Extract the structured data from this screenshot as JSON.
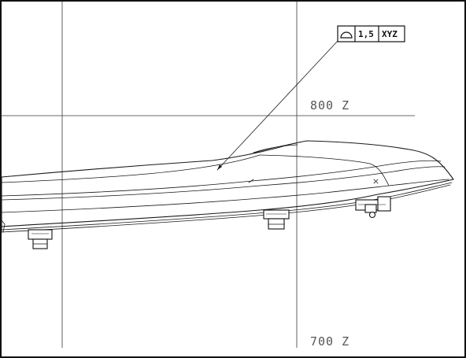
{
  "drawing": {
    "gridlines": {
      "upper": {
        "label": "800 Z"
      },
      "lower": {
        "label": "700 Z"
      }
    },
    "tolerance_frame": {
      "symbol": "profile-of-surface-icon",
      "value": "1,5",
      "datum": "XYZ"
    }
  }
}
